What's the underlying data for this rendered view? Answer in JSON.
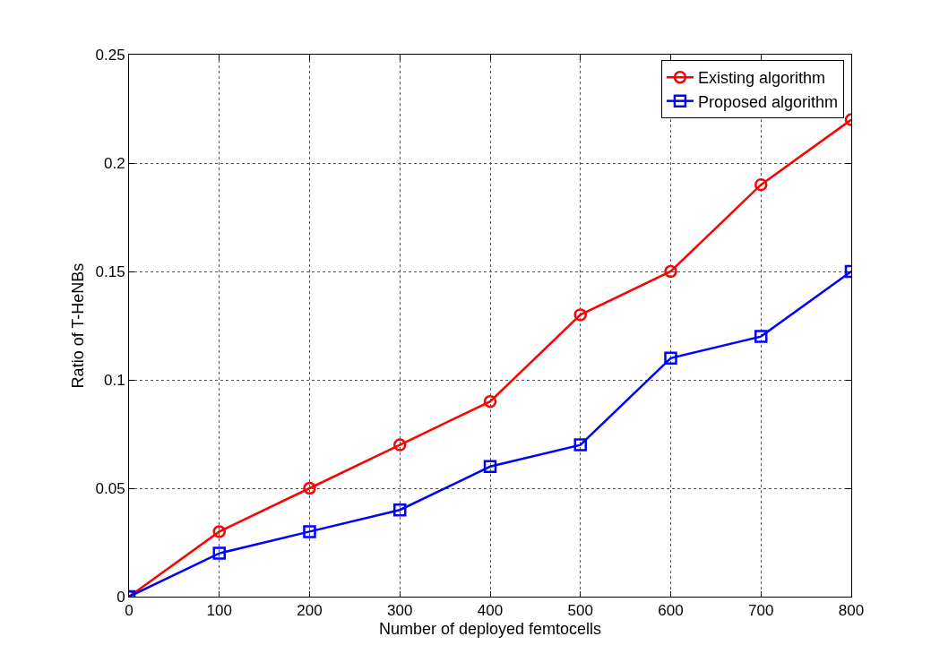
{
  "chart_data": {
    "type": "line",
    "xlabel": "Number of deployed femtocells",
    "ylabel": "Ratio of T-HeNBs",
    "x": [
      0,
      100,
      200,
      300,
      400,
      500,
      600,
      700,
      800
    ],
    "series": [
      {
        "name": "Existing algorithm",
        "color": "#ff0000",
        "marker": "circle",
        "values": [
          0,
          0.03,
          0.05,
          0.07,
          0.09,
          0.13,
          0.15,
          0.19,
          0.22
        ]
      },
      {
        "name": "Proposed algorithm",
        "color": "#0000ff",
        "marker": "square",
        "values": [
          0,
          0.02,
          0.03,
          0.04,
          0.06,
          0.07,
          0.11,
          0.12,
          0.15
        ]
      }
    ],
    "xlim": [
      0,
      800
    ],
    "xticks": [
      0,
      100,
      200,
      300,
      400,
      500,
      600,
      700,
      800
    ],
    "ylim": [
      0,
      0.25
    ],
    "yticks": [
      0,
      0.05,
      0.1,
      0.15,
      0.2,
      0.25
    ],
    "grid": true,
    "legend": "top right",
    "line_style": "solid"
  }
}
